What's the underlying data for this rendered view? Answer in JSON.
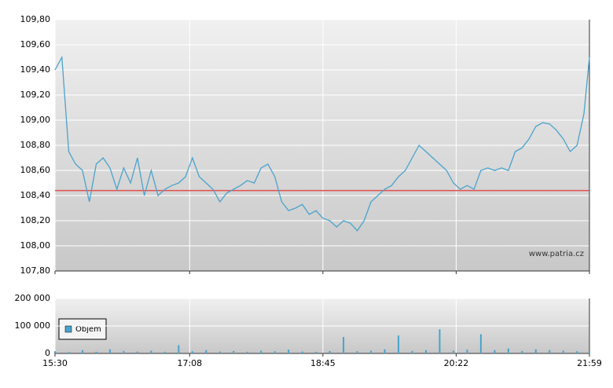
{
  "chart_data": [
    {
      "type": "line",
      "watermark": "www.patria.cz",
      "color": "#4aa3cc",
      "reference_line": 108.44,
      "reference_color": "#e05050",
      "x": [
        "15:30",
        "15:35",
        "15:40",
        "15:45",
        "15:50",
        "15:55",
        "16:00",
        "16:05",
        "16:10",
        "16:15",
        "16:20",
        "16:25",
        "16:30",
        "16:35",
        "16:40",
        "16:45",
        "16:50",
        "16:55",
        "17:00",
        "17:05",
        "17:10",
        "17:15",
        "17:20",
        "17:25",
        "17:30",
        "17:35",
        "17:40",
        "17:45",
        "17:50",
        "17:55",
        "18:00",
        "18:05",
        "18:10",
        "18:15",
        "18:20",
        "18:25",
        "18:30",
        "18:35",
        "18:40",
        "18:45",
        "18:50",
        "18:55",
        "19:00",
        "19:05",
        "19:10",
        "19:15",
        "19:20",
        "19:25",
        "19:30",
        "19:35",
        "19:40",
        "19:45",
        "19:50",
        "19:55",
        "20:00",
        "20:05",
        "20:10",
        "20:15",
        "20:20",
        "20:25",
        "20:30",
        "20:35",
        "20:40",
        "20:45",
        "20:50",
        "20:55",
        "21:00",
        "21:05",
        "21:10",
        "21:15",
        "21:20",
        "21:25",
        "21:30",
        "21:35",
        "21:40",
        "21:45",
        "21:50",
        "21:55",
        "21:59"
      ],
      "values": [
        109.4,
        109.5,
        108.75,
        108.65,
        108.6,
        108.35,
        108.65,
        108.7,
        108.62,
        108.45,
        108.62,
        108.5,
        108.7,
        108.4,
        108.6,
        108.4,
        108.45,
        108.48,
        108.5,
        108.55,
        108.7,
        108.55,
        108.5,
        108.45,
        108.35,
        108.42,
        108.45,
        108.48,
        108.52,
        108.5,
        108.62,
        108.65,
        108.55,
        108.35,
        108.28,
        108.3,
        108.33,
        108.25,
        108.28,
        108.22,
        108.2,
        108.15,
        108.2,
        108.18,
        108.12,
        108.2,
        108.35,
        108.4,
        108.45,
        108.48,
        108.55,
        108.6,
        108.7,
        108.8,
        108.75,
        108.7,
        108.65,
        108.6,
        108.5,
        108.45,
        108.48,
        108.45,
        108.6,
        108.62,
        108.6,
        108.62,
        108.6,
        108.75,
        108.78,
        108.85,
        108.95,
        108.98,
        108.97,
        108.92,
        108.85,
        108.75,
        108.8,
        109.05,
        109.5
      ],
      "xlim": [
        "15:30",
        "21:59"
      ],
      "ylim": [
        107.8,
        109.8
      ],
      "yticks": [
        {
          "value": 107.8,
          "label": "107,80"
        },
        {
          "value": 108.0,
          "label": "108,00"
        },
        {
          "value": 108.2,
          "label": "108,20"
        },
        {
          "value": 108.4,
          "label": "108,40"
        },
        {
          "value": 108.6,
          "label": "108,60"
        },
        {
          "value": 108.8,
          "label": "108,80"
        },
        {
          "value": 109.0,
          "label": "109,00"
        },
        {
          "value": 109.2,
          "label": "109,20"
        },
        {
          "value": 109.4,
          "label": "109,40"
        },
        {
          "value": 109.6,
          "label": "109,60"
        },
        {
          "value": 109.8,
          "label": "109,80"
        }
      ]
    },
    {
      "type": "bar",
      "legend": "Objem",
      "color": "#4aa3cc",
      "x": [
        "15:30",
        "15:40",
        "15:50",
        "16:00",
        "16:10",
        "16:20",
        "16:30",
        "16:40",
        "16:50",
        "17:00",
        "17:10",
        "17:20",
        "17:30",
        "17:40",
        "17:50",
        "18:00",
        "18:10",
        "18:20",
        "18:30",
        "18:40",
        "18:50",
        "19:00",
        "19:10",
        "19:20",
        "19:30",
        "19:40",
        "19:50",
        "20:00",
        "20:10",
        "20:20",
        "20:30",
        "20:40",
        "20:50",
        "21:00",
        "21:10",
        "21:20",
        "21:30",
        "21:40",
        "21:50",
        "21:59"
      ],
      "values": [
        8000,
        5000,
        12000,
        6000,
        15000,
        9000,
        7000,
        10000,
        6000,
        30000,
        8000,
        12000,
        7000,
        9000,
        6000,
        10000,
        8000,
        14000,
        7000,
        6000,
        9000,
        60000,
        8000,
        10000,
        15000,
        65000,
        9000,
        12000,
        88000,
        10000,
        14000,
        70000,
        12000,
        18000,
        9000,
        15000,
        12000,
        10000,
        8000,
        6000
      ],
      "xlim": [
        "15:30",
        "21:59"
      ],
      "ylim": [
        0,
        200000
      ],
      "xticks": [
        "15:30",
        "17:08",
        "18:45",
        "20:22",
        "21:59"
      ],
      "yticks": [
        0,
        {
          "value": 100000,
          "label": "100 000"
        },
        {
          "value": 200000,
          "label": "200 000"
        }
      ]
    }
  ]
}
